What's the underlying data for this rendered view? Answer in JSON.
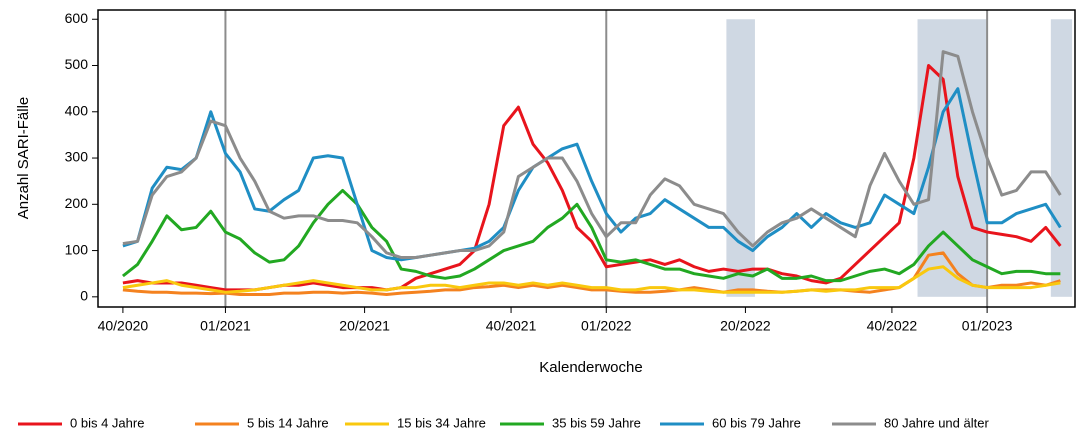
{
  "chart_data": {
    "type": "line",
    "y_label": "Anzahl SARI-Fälle",
    "x_label": "Kalenderwoche",
    "x": [
      0,
      2,
      4,
      6,
      8,
      10,
      12,
      14,
      16,
      18,
      20,
      22,
      24,
      26,
      28,
      30,
      32,
      34,
      36,
      38,
      40,
      42,
      44,
      46,
      48,
      50,
      52,
      54,
      56,
      58,
      60,
      62,
      64,
      66,
      68,
      70,
      72,
      74,
      76,
      78,
      80,
      82,
      84,
      86,
      88,
      90,
      92,
      94,
      96,
      98,
      100,
      102,
      104,
      106,
      108,
      110,
      112,
      114,
      116,
      118,
      120,
      122,
      124,
      126,
      128
    ],
    "xlim": [
      -3.4,
      130
    ],
    "xticks": [
      {
        "value": 0,
        "label": "40/2020"
      },
      {
        "value": 14,
        "label": "01/2021"
      },
      {
        "value": 33,
        "label": "20/2021"
      },
      {
        "value": 53,
        "label": "40/2021"
      },
      {
        "value": 66,
        "label": "01/2022"
      },
      {
        "value": 85,
        "label": "20/2022"
      },
      {
        "value": 105,
        "label": "40/2022"
      },
      {
        "value": 118,
        "label": "01/2023"
      }
    ],
    "ylim": [
      -22,
      620
    ],
    "yticks": [
      0,
      100,
      200,
      300,
      400,
      500,
      600
    ],
    "year_lines": [
      14,
      66,
      118
    ],
    "shaded_ranges": [
      [
        82.4,
        86.3
      ],
      [
        108.5,
        117.9
      ],
      [
        126.7,
        129.6
      ]
    ],
    "series": [
      {
        "name": "0 bis 4 Jahre",
        "color": "#e8141c",
        "values": [
          30,
          35,
          30,
          30,
          30,
          25,
          20,
          15,
          15,
          15,
          20,
          25,
          25,
          30,
          25,
          20,
          20,
          20,
          15,
          20,
          40,
          50,
          60,
          70,
          100,
          200,
          370,
          410,
          330,
          290,
          230,
          150,
          120,
          65,
          70,
          75,
          80,
          70,
          80,
          65,
          55,
          60,
          55,
          60,
          60,
          50,
          45,
          35,
          30,
          40,
          70,
          100,
          130,
          160,
          300,
          500,
          470,
          260,
          150,
          140,
          135,
          130,
          120,
          150,
          110
        ]
      },
      {
        "name": "5 bis 14 Jahre",
        "color": "#f4821f",
        "values": [
          15,
          12,
          10,
          10,
          8,
          8,
          7,
          8,
          5,
          5,
          5,
          8,
          8,
          10,
          10,
          8,
          10,
          8,
          5,
          8,
          10,
          12,
          15,
          15,
          20,
          22,
          25,
          20,
          25,
          20,
          25,
          20,
          15,
          15,
          12,
          10,
          10,
          12,
          15,
          20,
          15,
          10,
          15,
          15,
          12,
          10,
          12,
          15,
          15,
          15,
          12,
          10,
          15,
          20,
          40,
          90,
          95,
          50,
          25,
          20,
          25,
          25,
          30,
          25,
          35
        ]
      },
      {
        "name": "15 bis 34 Jahre",
        "color": "#f9c80e",
        "values": [
          20,
          25,
          30,
          35,
          25,
          20,
          15,
          10,
          12,
          15,
          20,
          25,
          30,
          35,
          30,
          25,
          20,
          15,
          15,
          20,
          20,
          25,
          25,
          20,
          25,
          30,
          30,
          25,
          30,
          25,
          30,
          25,
          20,
          20,
          15,
          15,
          20,
          20,
          15,
          15,
          12,
          10,
          10,
          10,
          10,
          10,
          12,
          15,
          12,
          15,
          15,
          20,
          20,
          20,
          40,
          60,
          65,
          40,
          25,
          20,
          20,
          20,
          20,
          25,
          30
        ]
      },
      {
        "name": "35 bis 59 Jahre",
        "color": "#22a822",
        "values": [
          45,
          70,
          120,
          175,
          145,
          150,
          185,
          140,
          125,
          95,
          75,
          80,
          110,
          160,
          200,
          230,
          200,
          150,
          120,
          60,
          55,
          45,
          40,
          45,
          60,
          80,
          100,
          110,
          120,
          150,
          170,
          200,
          150,
          80,
          75,
          80,
          70,
          60,
          60,
          50,
          45,
          40,
          50,
          45,
          60,
          40,
          40,
          45,
          35,
          35,
          45,
          55,
          60,
          50,
          70,
          110,
          140,
          110,
          80,
          65,
          50,
          55,
          55,
          50,
          50
        ]
      },
      {
        "name": "60 bis 79 Jahre",
        "color": "#1f8ec4",
        "values": [
          110,
          120,
          235,
          280,
          275,
          300,
          400,
          310,
          270,
          190,
          185,
          210,
          230,
          300,
          305,
          300,
          200,
          100,
          85,
          80,
          85,
          90,
          95,
          100,
          105,
          120,
          150,
          230,
          280,
          300,
          320,
          330,
          250,
          180,
          140,
          170,
          180,
          210,
          190,
          170,
          150,
          150,
          120,
          100,
          130,
          150,
          180,
          150,
          180,
          160,
          150,
          160,
          220,
          200,
          180,
          280,
          400,
          450,
          300,
          160,
          160,
          180,
          190,
          200,
          150
        ]
      },
      {
        "name": "80 Jahre und älter",
        "color": "#8c8c8c",
        "values": [
          115,
          120,
          220,
          260,
          270,
          300,
          380,
          370,
          300,
          250,
          185,
          170,
          175,
          175,
          165,
          165,
          160,
          130,
          95,
          85,
          85,
          90,
          95,
          100,
          100,
          110,
          140,
          260,
          280,
          300,
          300,
          250,
          180,
          130,
          160,
          160,
          220,
          255,
          240,
          200,
          190,
          180,
          140,
          110,
          140,
          160,
          170,
          190,
          170,
          150,
          130,
          240,
          310,
          250,
          200,
          210,
          530,
          520,
          400,
          300,
          220,
          230,
          270,
          270,
          220
        ]
      }
    ]
  }
}
